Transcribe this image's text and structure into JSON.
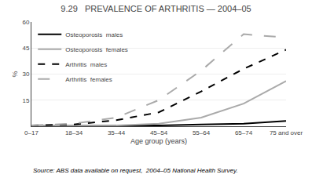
{
  "chart_data": {
    "type": "line",
    "title": "9.29   PREVALENCE OF ARTHRITIS — 2004–05",
    "x_label": "Age group (years)",
    "y_label": "%",
    "annotations": [
      "Source: ABS data available on request,  2004–05 National Health Survey."
    ],
    "categories": [
      "0–17",
      "18–34",
      "35–44",
      "45–54",
      "55–64",
      "65–74",
      "75 and over"
    ],
    "series": [
      {
        "name": "Osteoporosis  males",
        "color": "#000000",
        "line_style": "solid",
        "values": [
          0.2,
          0.2,
          0.3,
          0.5,
          1.0,
          1.5,
          3.0
        ]
      },
      {
        "name": "Osteoporosis  females",
        "color": "#aaaaaa",
        "line_style": "solid",
        "values": [
          0.2,
          0.3,
          0.5,
          1.5,
          5.0,
          13.0,
          26.0
        ]
      },
      {
        "name": "Arthritis  males",
        "color": "#000000",
        "line_style": "dashed",
        "values": [
          0.5,
          1.0,
          3.5,
          8.0,
          20.0,
          33.0,
          44.0
        ]
      },
      {
        "name": "Arthritis  females",
        "color": "#aaaaaa",
        "line_style": "long_dashed",
        "values": [
          0.5,
          1.5,
          5.0,
          15.0,
          32.0,
          53.0,
          51.0
        ]
      }
    ],
    "ylim": [
      0,
      60
    ],
    "yticks": [
      15,
      30,
      45,
      60
    ],
    "grid": true,
    "legend": "upper left"
  }
}
